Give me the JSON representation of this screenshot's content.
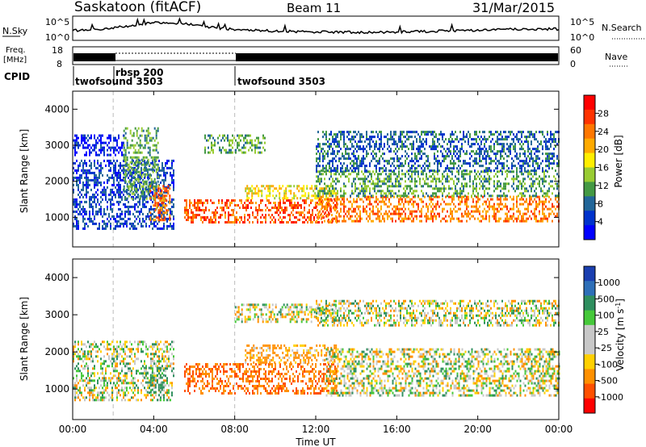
{
  "header": {
    "station": "Saskatoon (fitACF)",
    "beam": "Beam 11",
    "date": "31/Mar/2015"
  },
  "sky_panel": {
    "label": "N.Sky",
    "ticks_left": [
      "10^5",
      "10^0"
    ],
    "ticks_right": [
      "10^5",
      "10^0"
    ],
    "right_label": "N.Search"
  },
  "freq_panel": {
    "label_line1": "Freq.",
    "label_line2": "[MHz]",
    "ticks_left": [
      "18",
      "8"
    ],
    "ticks_right": [
      "60",
      "0"
    ],
    "right_label": "Nave"
  },
  "cpid_panel": {
    "label": "CPID",
    "programs": [
      {
        "name": "twofsound 3503",
        "start_hour": 0
      },
      {
        "name": "rbsp 200",
        "start_hour": 2
      },
      {
        "name": "twofsound 3503",
        "start_hour": 8
      }
    ]
  },
  "time_axis": {
    "label": "Time UT",
    "ticks": [
      "00:00",
      "04:00",
      "08:00",
      "12:00",
      "16:00",
      "20:00",
      "00:00"
    ]
  },
  "power_colorbar": {
    "label": "Power [dB]",
    "ticks": [
      "28",
      "24",
      "20",
      "16",
      "12",
      "8",
      "4"
    ],
    "colors": [
      "#ff0000",
      "#ff3300",
      "#ff7700",
      "#ffaa00",
      "#ffee00",
      "#99cc33",
      "#449944",
      "#226699",
      "#0033cc",
      "#0000ff"
    ]
  },
  "velocity_colorbar": {
    "label": "Velocity [m s",
    "label_sup": "-1",
    "label_end": "]",
    "ticks": [
      "1000",
      "500",
      "100",
      "25",
      "-25",
      "-100",
      "-500",
      "-1000"
    ],
    "colors": [
      "#1a3fb0",
      "#2e6fb8",
      "#2f8f5f",
      "#46c93a",
      "#c8c8c8",
      "#c8c8c8",
      "#ffd000",
      "#ff9000",
      "#ff5000",
      "#ff0000"
    ]
  },
  "chart_data": [
    {
      "type": "heatmap",
      "title": "Power",
      "xlabel": "",
      "ylabel": "Slant Range [km]",
      "ylim": [
        180,
        4500
      ],
      "xlim_hours": [
        0,
        24
      ],
      "y_ticks": [
        1000,
        2000,
        3000,
        4000
      ],
      "units": "dB",
      "regions": [
        {
          "x": [
            0,
            5
          ],
          "y": [
            700,
            2600
          ],
          "value": 8
        },
        {
          "x": [
            0,
            2.5
          ],
          "y": [
            2700,
            3300
          ],
          "value": 6
        },
        {
          "x": [
            2.5,
            4.2
          ],
          "y": [
            1500,
            3500
          ],
          "value": 14
        },
        {
          "x": [
            3.8,
            4.8
          ],
          "y": [
            900,
            1900
          ],
          "value": 26
        },
        {
          "x": [
            5.5,
            13
          ],
          "y": [
            850,
            1500
          ],
          "value": 27
        },
        {
          "x": [
            8.5,
            13
          ],
          "y": [
            1500,
            1900
          ],
          "value": 20
        },
        {
          "x": [
            6.5,
            9.5
          ],
          "y": [
            2800,
            3300
          ],
          "value": 14
        },
        {
          "x": [
            12,
            24
          ],
          "y": [
            900,
            1600
          ],
          "value": 25
        },
        {
          "x": [
            12,
            24
          ],
          "y": [
            1600,
            2300
          ],
          "value": 14
        },
        {
          "x": [
            12,
            24
          ],
          "y": [
            2300,
            3400
          ],
          "value": 10
        }
      ]
    },
    {
      "type": "heatmap",
      "title": "Velocity",
      "xlabel": "Time UT",
      "ylabel": "Slant Range [km]",
      "ylim": [
        180,
        4500
      ],
      "xlim_hours": [
        0,
        24
      ],
      "y_ticks": [
        1000,
        2000,
        3000,
        4000
      ],
      "units": "m s^-1",
      "regions": [
        {
          "x": [
            0,
            5
          ],
          "y": [
            700,
            2300
          ],
          "value": 0
        },
        {
          "x": [
            3.5,
            4.5
          ],
          "y": [
            900,
            1600
          ],
          "value": 200
        },
        {
          "x": [
            5.5,
            13
          ],
          "y": [
            900,
            1700
          ],
          "value": -300
        },
        {
          "x": [
            8.5,
            13
          ],
          "y": [
            1700,
            2200
          ],
          "value": -100
        },
        {
          "x": [
            8,
            13
          ],
          "y": [
            2800,
            3300
          ],
          "value": 0
        },
        {
          "x": [
            12.5,
            24
          ],
          "y": [
            800,
            2100
          ],
          "value": 0
        },
        {
          "x": [
            12,
            24
          ],
          "y": [
            2700,
            3400
          ],
          "value": 0
        }
      ]
    }
  ]
}
